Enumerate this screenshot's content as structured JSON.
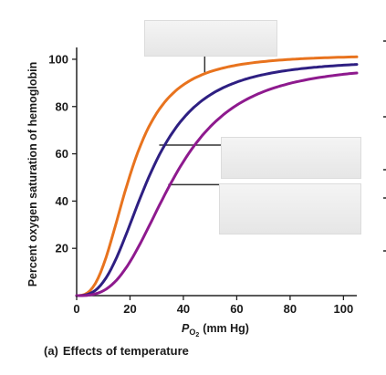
{
  "chart_data": {
    "type": "line",
    "title": "",
    "xlabel_base": "P",
    "xlabel_sub": "O",
    "xlabel_sub2": "2",
    "xlabel_units": "(mm Hg)",
    "ylabel": "Percent oxygen saturation of hemoglobin",
    "caption_prefix": "(a)",
    "caption_text": "Effects of temperature",
    "xlim": [
      0,
      105
    ],
    "ylim": [
      0,
      105
    ],
    "x_ticks": [
      0,
      20,
      40,
      60,
      80,
      100
    ],
    "y_ticks": [
      20,
      40,
      60,
      80,
      100
    ],
    "grid": false,
    "series": [
      {
        "color": "#e8731e",
        "p50": 20,
        "n": 2.8,
        "max": 102
      },
      {
        "color": "#2e1f82",
        "p50": 27,
        "n": 2.8,
        "max": 100
      },
      {
        "color": "#8e1a8e",
        "p50": 36,
        "n": 3.0,
        "max": 98
      }
    ]
  }
}
